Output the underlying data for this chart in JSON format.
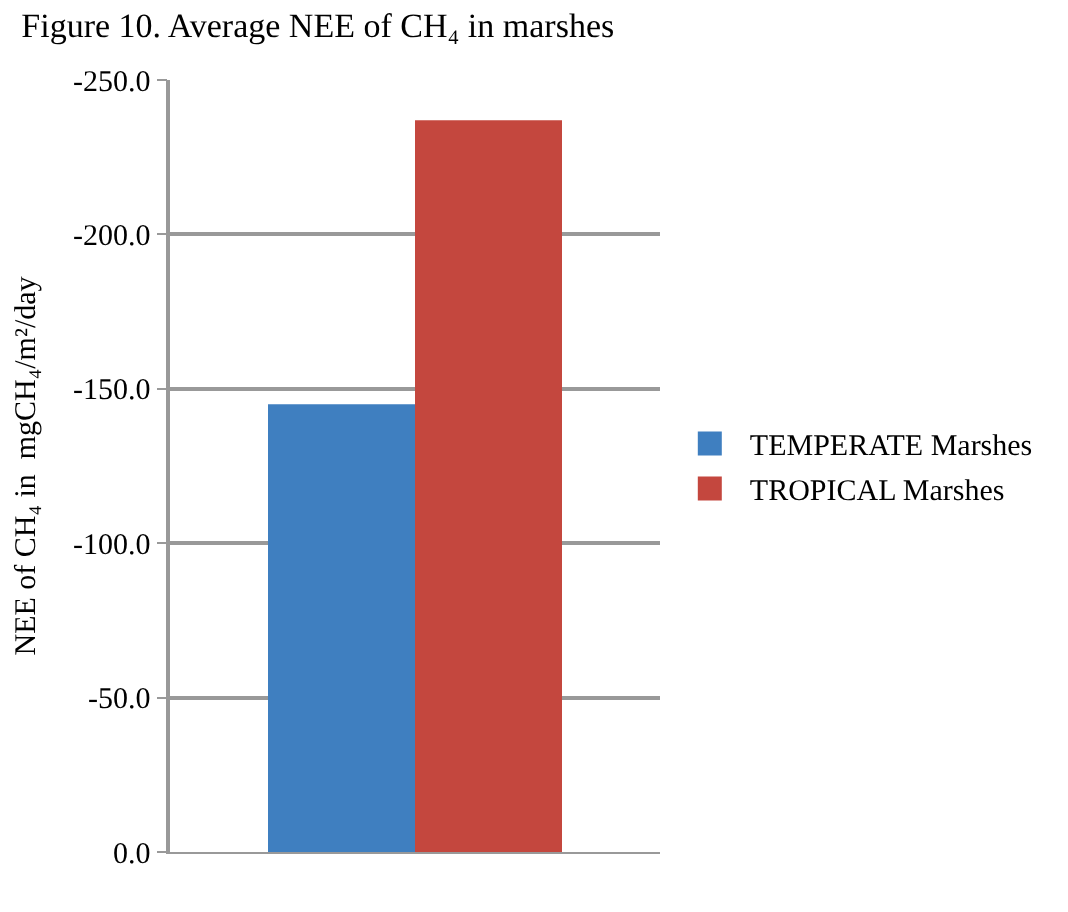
{
  "chart_data": {
    "type": "bar",
    "title": "Figure 10. Average NEE of CH₄ in marshes",
    "ylabel": "NEE of CH₄ in  mgCH₄/m²/day",
    "categories": [
      null
    ],
    "series": [
      {
        "name": "TEMPERATE Marshes",
        "color": "#3f7fc0",
        "values": [
          -145
        ]
      },
      {
        "name": "TROPICAL Marshes",
        "color": "#c4473e",
        "values": [
          -237
        ]
      }
    ],
    "ylim": [
      0,
      -250
    ],
    "yticks": [
      {
        "value": 0,
        "label": "0.0"
      },
      {
        "value": -50,
        "label": "-50.0"
      },
      {
        "value": -100,
        "label": "-100.0"
      },
      {
        "value": -150,
        "label": "-150.0"
      },
      {
        "value": -200,
        "label": "-200.0"
      },
      {
        "value": -250,
        "label": "-250.0"
      }
    ],
    "grid": "y",
    "legend": "right"
  }
}
